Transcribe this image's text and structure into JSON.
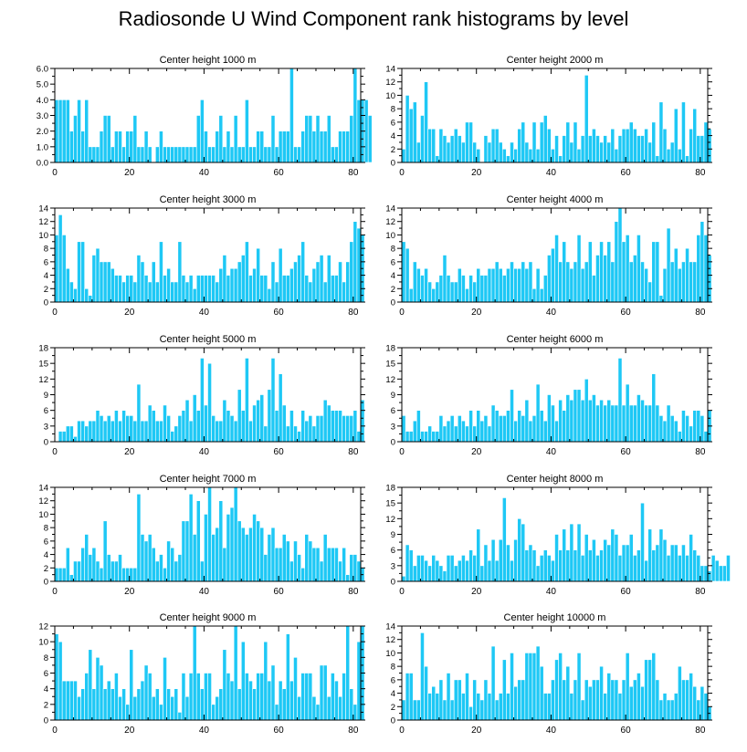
{
  "figure": {
    "title": "Radiosonde U Wind Component rank histograms by level"
  },
  "colors": {
    "bar": "#1ec8f5",
    "bar_edge": "#ffffff",
    "axis": "#000000"
  },
  "chart_data": [
    {
      "type": "bar",
      "title": "Center height 1000 m",
      "xlim": [
        0,
        82
      ],
      "ylim": [
        0,
        6
      ],
      "xticks": [
        0,
        20,
        40,
        60,
        80
      ],
      "yticks": [
        0,
        1,
        2,
        3,
        4,
        5,
        6
      ],
      "yticklabels": [
        "0.0",
        "1.0",
        "2.0",
        "3.0",
        "4.0",
        "5.0",
        "6.0"
      ],
      "values": [
        4,
        4,
        4,
        4,
        2,
        3,
        4,
        2,
        4,
        1,
        1,
        1,
        2,
        3,
        3,
        1,
        2,
        2,
        1,
        2,
        2,
        3,
        1,
        1,
        2,
        1,
        0,
        1,
        2,
        1,
        1,
        1,
        1,
        1,
        1,
        1,
        1,
        1,
        3,
        4,
        2,
        1,
        1,
        2,
        3,
        1,
        2,
        1,
        3,
        1,
        1,
        4,
        1,
        1,
        2,
        2,
        1,
        1,
        3,
        1,
        2,
        2,
        2,
        6,
        1,
        1,
        2,
        3,
        3,
        2,
        3,
        2,
        2,
        3,
        1,
        1,
        2,
        2,
        2,
        3,
        6,
        4,
        4,
        4,
        3
      ]
    },
    {
      "type": "bar",
      "title": "Center height 2000 m",
      "xlim": [
        0,
        82
      ],
      "ylim": [
        0,
        14
      ],
      "xticks": [
        0,
        20,
        40,
        60,
        80
      ],
      "yticks": [
        0,
        2,
        4,
        6,
        8,
        10,
        12,
        14
      ],
      "yticklabels": [
        "0",
        "2",
        "4",
        "6",
        "8",
        "10",
        "12",
        "14"
      ],
      "values": [
        2,
        10,
        8,
        9,
        3,
        7,
        12,
        5,
        5,
        1,
        5,
        4,
        3,
        4,
        5,
        4,
        3,
        6,
        6,
        3,
        2,
        0,
        4,
        3,
        5,
        5,
        3,
        2,
        1,
        3,
        2,
        5,
        6,
        3,
        2,
        6,
        2,
        6,
        7,
        5,
        2,
        4,
        1,
        4,
        6,
        3,
        6,
        2,
        4,
        13,
        4,
        5,
        4,
        3,
        4,
        3,
        5,
        2,
        4,
        5,
        5,
        6,
        5,
        4,
        4,
        5,
        3,
        6,
        1,
        9,
        5,
        2,
        3,
        8,
        2,
        9,
        1,
        5,
        8,
        4,
        4,
        6,
        5
      ]
    },
    {
      "type": "bar",
      "title": "Center height 3000 m",
      "xlim": [
        0,
        82
      ],
      "ylim": [
        0,
        14
      ],
      "xticks": [
        0,
        20,
        40,
        60,
        80
      ],
      "yticks": [
        0,
        2,
        4,
        6,
        8,
        10,
        12,
        14
      ],
      "yticklabels": [
        "0",
        "2",
        "4",
        "6",
        "8",
        "10",
        "12",
        "14"
      ],
      "values": [
        10,
        13,
        10,
        5,
        3,
        2,
        9,
        9,
        2,
        1,
        7,
        8,
        6,
        6,
        6,
        5,
        4,
        4,
        3,
        4,
        4,
        3,
        7,
        6,
        4,
        3,
        6,
        3,
        9,
        4,
        5,
        3,
        3,
        9,
        4,
        3,
        4,
        2,
        4,
        4,
        4,
        4,
        4,
        3,
        5,
        7,
        4,
        5,
        5,
        6,
        7,
        9,
        4,
        5,
        8,
        4,
        4,
        2,
        6,
        3,
        8,
        4,
        4,
        5,
        6,
        7,
        9,
        4,
        3,
        5,
        6,
        7,
        3,
        7,
        4,
        4,
        6,
        3,
        6,
        9,
        12,
        11,
        10
      ]
    },
    {
      "type": "bar",
      "title": "Center height 4000 m",
      "xlim": [
        0,
        82
      ],
      "ylim": [
        0,
        14
      ],
      "xticks": [
        0,
        20,
        40,
        60,
        80
      ],
      "yticks": [
        0,
        2,
        4,
        6,
        8,
        10,
        12,
        14
      ],
      "yticklabels": [
        "0",
        "2",
        "4",
        "6",
        "8",
        "10",
        "12",
        "14"
      ],
      "values": [
        9,
        8,
        2,
        6,
        5,
        4,
        5,
        3,
        2,
        3,
        4,
        7,
        4,
        3,
        3,
        5,
        4,
        2,
        4,
        3,
        5,
        4,
        4,
        5,
        5,
        6,
        5,
        4,
        5,
        6,
        5,
        5,
        6,
        5,
        6,
        2,
        5,
        2,
        4,
        7,
        8,
        10,
        6,
        9,
        6,
        5,
        6,
        10,
        5,
        6,
        9,
        4,
        7,
        9,
        7,
        9,
        6,
        12,
        14,
        9,
        10,
        6,
        7,
        10,
        6,
        5,
        3,
        9,
        9,
        1,
        5,
        11,
        6,
        8,
        5,
        6,
        8,
        6,
        6,
        10,
        12,
        10,
        7
      ]
    },
    {
      "type": "bar",
      "title": "Center height 5000 m",
      "xlim": [
        0,
        82
      ],
      "ylim": [
        0,
        18
      ],
      "xticks": [
        0,
        20,
        40,
        60,
        80
      ],
      "yticks": [
        0,
        3,
        6,
        9,
        12,
        15,
        18
      ],
      "yticklabels": [
        "0",
        "3",
        "6",
        "9",
        "12",
        "15",
        "18"
      ],
      "values": [
        0,
        2,
        2,
        3,
        3,
        1,
        4,
        4,
        3,
        4,
        4,
        6,
        5,
        4,
        5,
        4,
        6,
        4,
        6,
        5,
        5,
        4,
        11,
        4,
        4,
        7,
        6,
        4,
        4,
        7,
        5,
        2,
        3,
        5,
        6,
        8,
        4,
        9,
        6,
        16,
        7,
        15,
        5,
        4,
        4,
        8,
        6,
        5,
        4,
        10,
        6,
        16,
        4,
        7,
        8,
        9,
        3,
        10,
        16,
        6,
        13,
        7,
        3,
        6,
        3,
        2,
        6,
        4,
        5,
        3,
        5,
        5,
        8,
        7,
        6,
        6,
        6,
        5,
        5,
        5,
        6,
        2,
        8
      ]
    },
    {
      "type": "bar",
      "title": "Center height 6000 m",
      "xlim": [
        0,
        82
      ],
      "ylim": [
        0,
        18
      ],
      "xticks": [
        0,
        20,
        40,
        60,
        80
      ],
      "yticks": [
        0,
        3,
        6,
        9,
        12,
        15,
        18
      ],
      "yticklabels": [
        "0",
        "3",
        "6",
        "9",
        "12",
        "15",
        "18"
      ],
      "values": [
        5,
        2,
        2,
        4,
        6,
        2,
        2,
        3,
        2,
        2,
        5,
        3,
        4,
        5,
        3,
        5,
        4,
        3,
        6,
        3,
        6,
        4,
        5,
        3,
        7,
        6,
        5,
        5,
        6,
        10,
        4,
        6,
        5,
        8,
        4,
        5,
        11,
        6,
        4,
        9,
        7,
        4,
        8,
        6,
        9,
        8,
        10,
        10,
        8,
        12,
        8,
        9,
        7,
        8,
        7,
        8,
        7,
        7,
        16,
        7,
        11,
        7,
        7,
        9,
        8,
        7,
        7,
        13,
        7,
        5,
        4,
        7,
        5,
        4,
        2,
        6,
        5,
        3,
        6,
        6,
        5,
        2,
        6
      ]
    },
    {
      "type": "bar",
      "title": "Center height 7000 m",
      "xlim": [
        0,
        82
      ],
      "ylim": [
        0,
        14
      ],
      "xticks": [
        0,
        20,
        40,
        60,
        80
      ],
      "yticks": [
        0,
        2,
        4,
        6,
        8,
        10,
        12,
        14
      ],
      "yticklabels": [
        "0",
        "2",
        "4",
        "6",
        "8",
        "10",
        "12",
        "14"
      ],
      "values": [
        2,
        2,
        2,
        5,
        1,
        3,
        3,
        5,
        7,
        4,
        5,
        3,
        2,
        9,
        4,
        3,
        3,
        4,
        2,
        2,
        2,
        2,
        13,
        7,
        6,
        7,
        5,
        3,
        4,
        2,
        6,
        5,
        3,
        4,
        9,
        9,
        13,
        7,
        12,
        3,
        10,
        14,
        7,
        8,
        12,
        5,
        10,
        11,
        14,
        9,
        8,
        7,
        8,
        10,
        9,
        8,
        4,
        7,
        8,
        5,
        5,
        7,
        6,
        3,
        6,
        4,
        2,
        7,
        6,
        5,
        5,
        3,
        7,
        5,
        5,
        5,
        3,
        5,
        1,
        4,
        4,
        3,
        2
      ]
    },
    {
      "type": "bar",
      "title": "Center height 8000 m",
      "xlim": [
        0,
        82
      ],
      "ylim": [
        0,
        18
      ],
      "xticks": [
        0,
        20,
        40,
        60,
        80
      ],
      "yticks": [
        0,
        3,
        6,
        9,
        12,
        15,
        18
      ],
      "yticklabels": [
        "0",
        "3",
        "6",
        "9",
        "12",
        "15",
        "18"
      ],
      "values": [
        1,
        7,
        6,
        3,
        5,
        5,
        4,
        3,
        5,
        4,
        3,
        2,
        5,
        5,
        3,
        4,
        5,
        4,
        6,
        5,
        10,
        3,
        7,
        4,
        8,
        4,
        8,
        16,
        7,
        4,
        8,
        12,
        11,
        6,
        7,
        6,
        3,
        5,
        6,
        5,
        4,
        9,
        6,
        10,
        6,
        11,
        6,
        11,
        5,
        9,
        6,
        8,
        5,
        6,
        8,
        7,
        10,
        9,
        5,
        7,
        7,
        9,
        5,
        6,
        15,
        4,
        10,
        6,
        7,
        10,
        8,
        5,
        7,
        7,
        5,
        7,
        5,
        9,
        6,
        5,
        3,
        3,
        2,
        5,
        4,
        3,
        3,
        5
      ]
    },
    {
      "type": "bar",
      "title": "Center height 9000 m",
      "xlim": [
        0,
        82
      ],
      "ylim": [
        0,
        12
      ],
      "xticks": [
        0,
        20,
        40,
        60,
        80
      ],
      "yticks": [
        0,
        2,
        4,
        6,
        8,
        10,
        12
      ],
      "yticklabels": [
        "0",
        "2",
        "4",
        "6",
        "8",
        "10",
        "12"
      ],
      "values": [
        11,
        10,
        5,
        5,
        5,
        5,
        3,
        4,
        6,
        9,
        4,
        8,
        7,
        4,
        5,
        4,
        6,
        3,
        4,
        2,
        9,
        3,
        4,
        5,
        7,
        6,
        3,
        4,
        2,
        8,
        4,
        3,
        4,
        1,
        6,
        3,
        6,
        12,
        6,
        4,
        6,
        6,
        2,
        3,
        4,
        9,
        6,
        5,
        12,
        4,
        10,
        6,
        5,
        4,
        6,
        6,
        10,
        5,
        7,
        2,
        5,
        4,
        11,
        5,
        8,
        3,
        6,
        6,
        6,
        3,
        2,
        7,
        7,
        3,
        6,
        5,
        3,
        6,
        12,
        4,
        2,
        10,
        12
      ]
    },
    {
      "type": "bar",
      "title": "Center height 10000 m",
      "xlim": [
        0,
        82
      ],
      "ylim": [
        0,
        14
      ],
      "xticks": [
        0,
        20,
        40,
        60,
        80
      ],
      "yticks": [
        0,
        2,
        4,
        6,
        8,
        10,
        12,
        14
      ],
      "yticklabels": [
        "0",
        "2",
        "4",
        "6",
        "8",
        "10",
        "12",
        "14"
      ],
      "values": [
        3,
        7,
        7,
        3,
        3,
        13,
        8,
        4,
        5,
        4,
        6,
        3,
        7,
        3,
        6,
        6,
        4,
        7,
        2,
        6,
        4,
        3,
        6,
        4,
        11,
        3,
        4,
        9,
        4,
        10,
        5,
        6,
        6,
        10,
        10,
        10,
        11,
        8,
        4,
        4,
        6,
        9,
        10,
        6,
        8,
        4,
        6,
        10,
        3,
        6,
        5,
        6,
        6,
        8,
        4,
        7,
        6,
        6,
        4,
        6,
        10,
        5,
        6,
        7,
        5,
        9,
        9,
        10,
        6,
        3,
        4,
        3,
        3,
        4,
        8,
        6,
        6,
        7,
        5,
        3,
        5,
        4,
        2
      ]
    }
  ]
}
